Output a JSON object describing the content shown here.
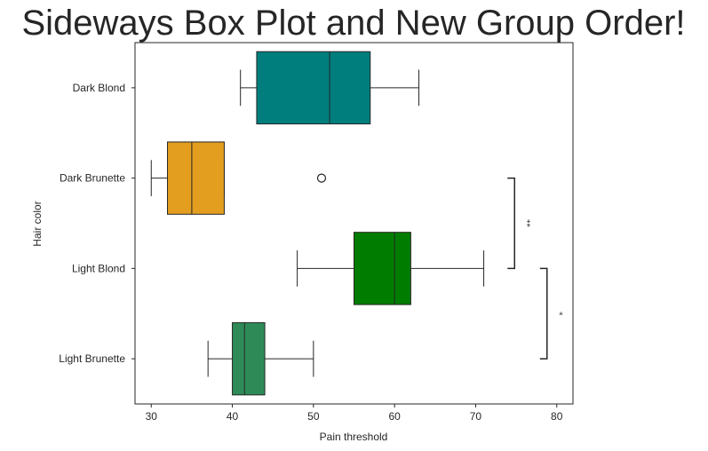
{
  "chart_data": {
    "type": "box",
    "orientation": "horizontal",
    "title": "Sideways Box Plot and New Group Order!",
    "xlabel": "Pain threshold",
    "ylabel": "Hair color",
    "xlim": [
      28,
      82
    ],
    "xticks": [
      30,
      40,
      50,
      60,
      70,
      80
    ],
    "grid": false,
    "categories": [
      "Dark Blond",
      "Dark Brunette",
      "Light Blond",
      "Light Brunette"
    ],
    "boxes": [
      {
        "category": "Dark Blond",
        "whisker_low": 41,
        "q1": 43,
        "median": 52,
        "q3": 57,
        "whisker_high": 63,
        "outliers": [],
        "color": "#007e7e"
      },
      {
        "category": "Dark Brunette",
        "whisker_low": 30,
        "q1": 32,
        "median": 35,
        "q3": 39,
        "whisker_high": 39,
        "outliers": [
          51
        ],
        "color": "#e39e1f"
      },
      {
        "category": "Light Blond",
        "whisker_low": 48,
        "q1": 55,
        "median": 60,
        "q3": 62,
        "whisker_high": 71,
        "outliers": [],
        "color": "#007d00"
      },
      {
        "category": "Light Brunette",
        "whisker_low": 37,
        "q1": 40,
        "median": 41.5,
        "q3": 44,
        "whisker_high": 50,
        "outliers": [],
        "color": "#2e8b57"
      }
    ],
    "annotations": [
      {
        "from": "Dark Brunette",
        "to": "Light Blond",
        "text": "**"
      },
      {
        "from": "Light Blond",
        "to": "Light Brunette",
        "text": "*"
      }
    ]
  }
}
